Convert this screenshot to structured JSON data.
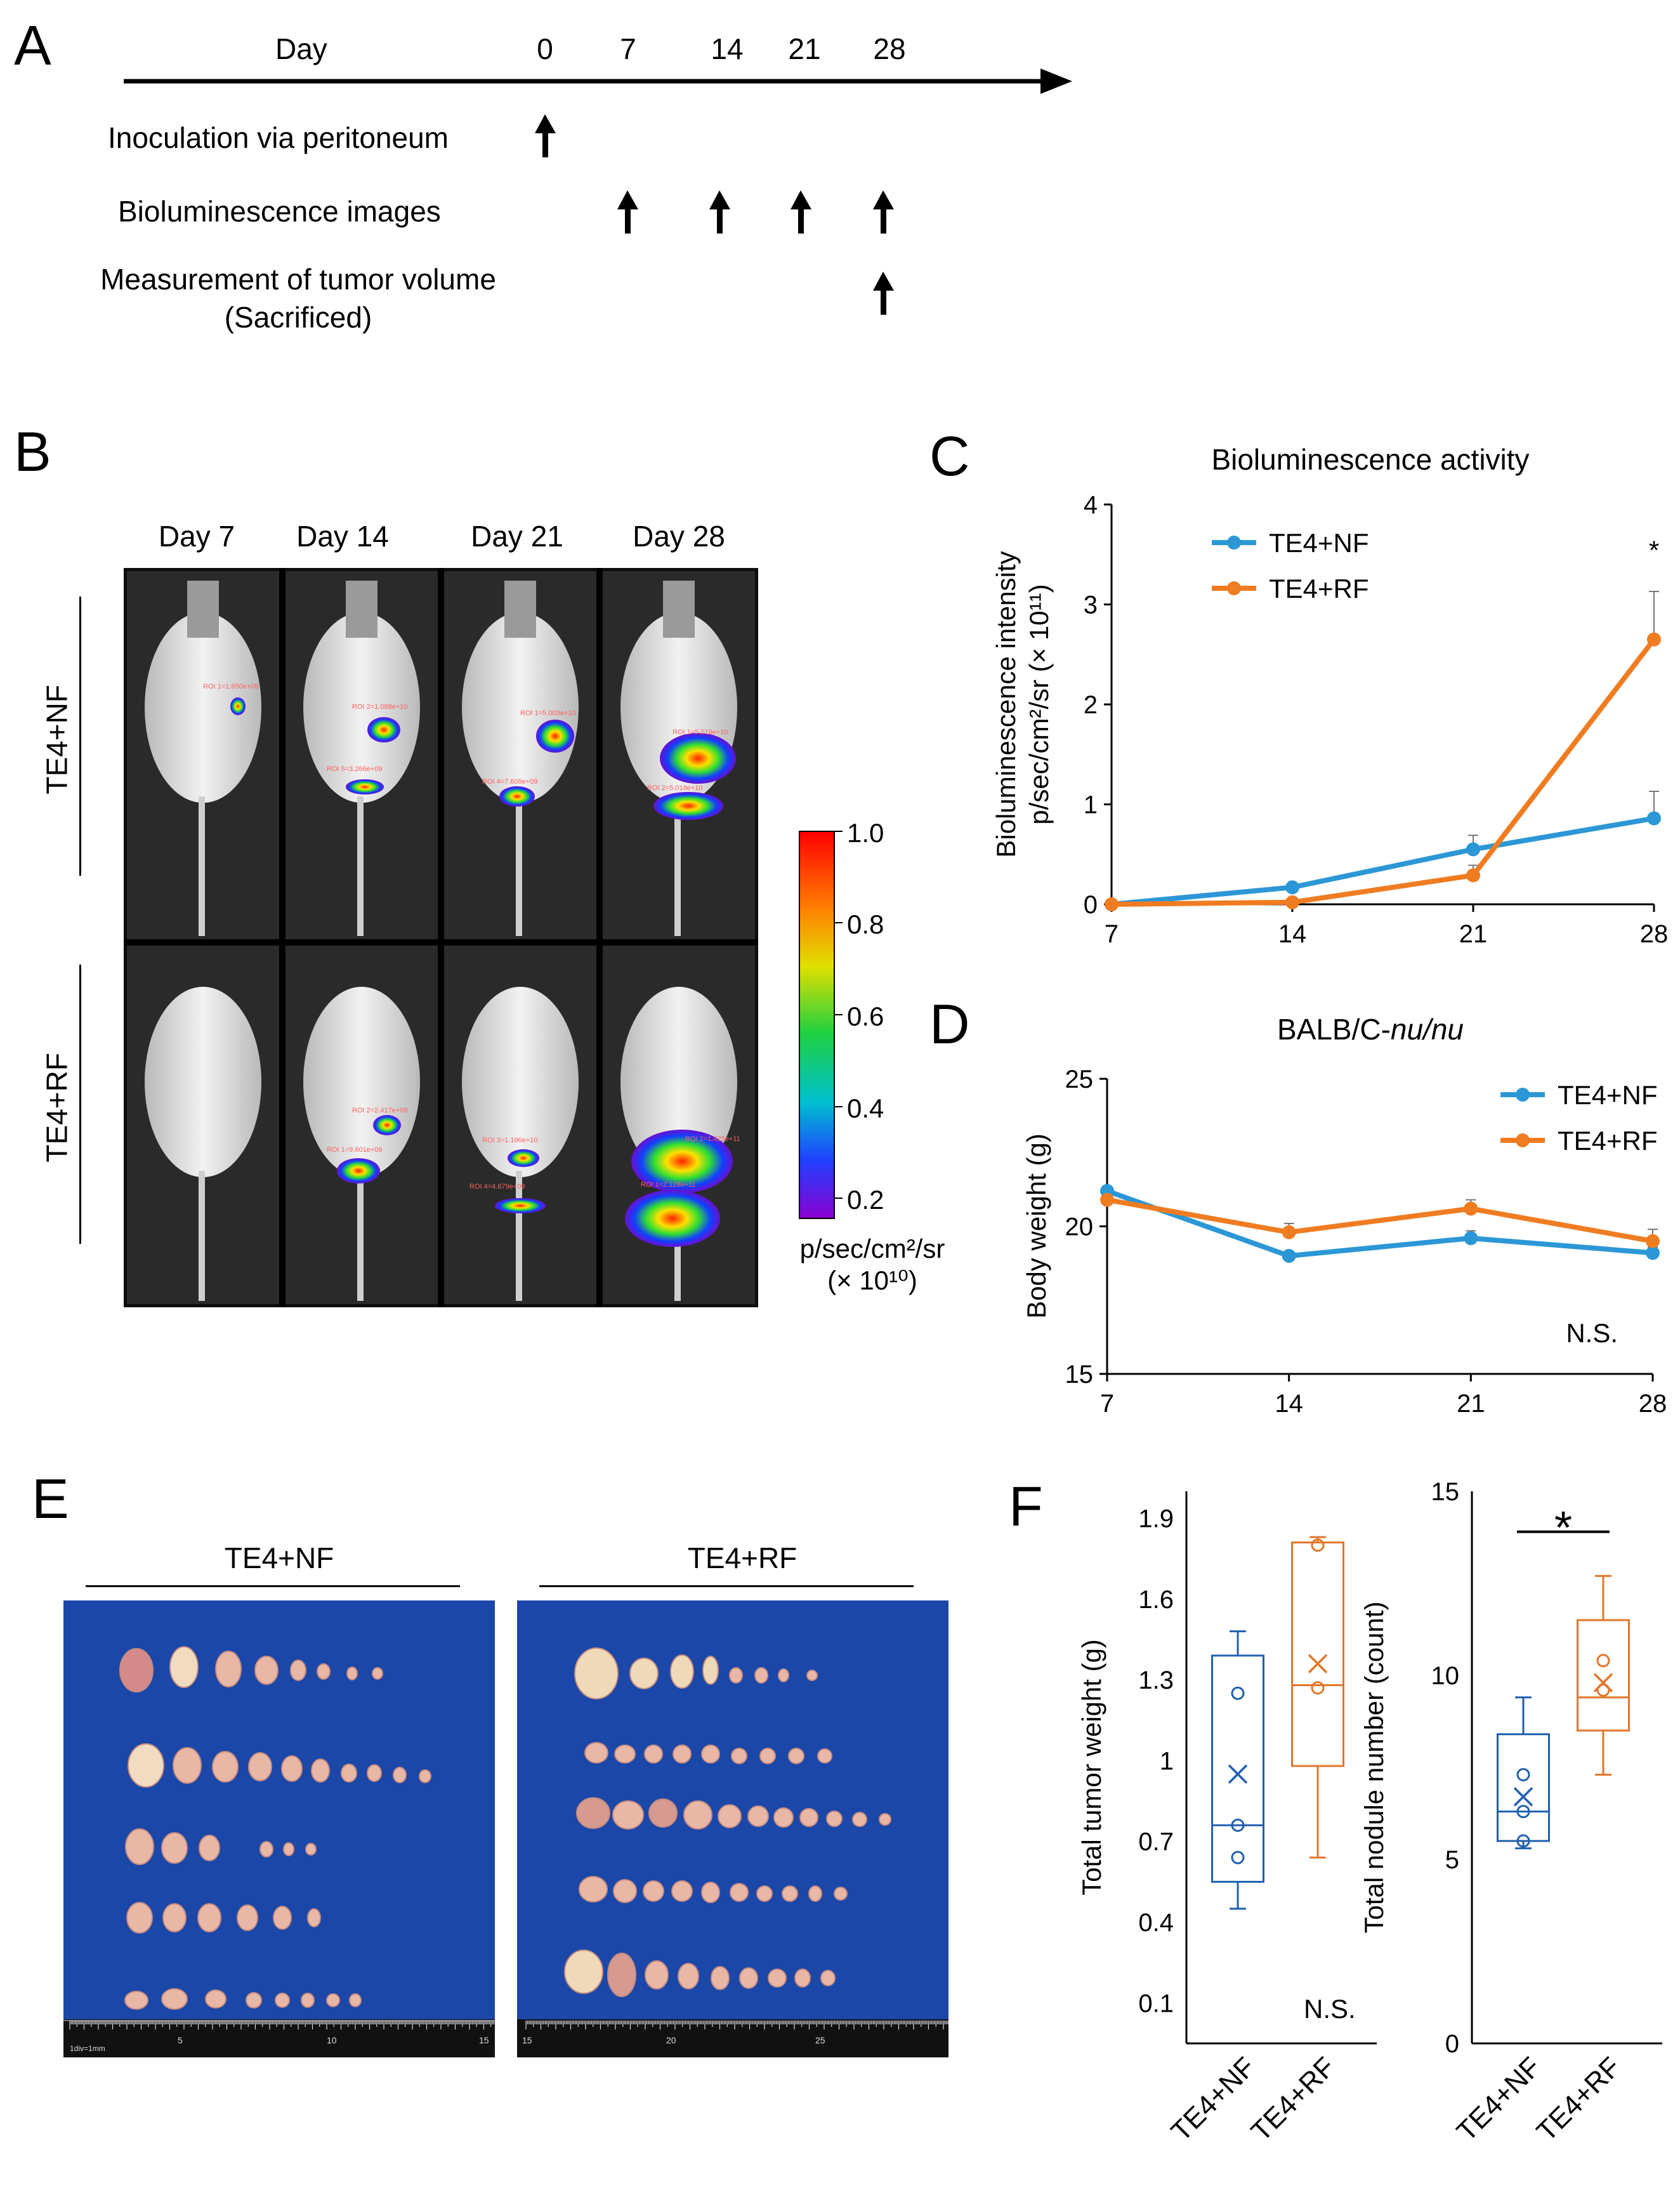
{
  "panels": {
    "a": "A",
    "b": "B",
    "c": "C",
    "d": "D",
    "e": "E",
    "f": "F"
  },
  "timeline": {
    "day_label": "Day",
    "days": [
      "0",
      "7",
      "14",
      "21",
      "28"
    ],
    "steps": [
      {
        "label": "Inoculation via peritoneum",
        "days": [
          "0"
        ]
      },
      {
        "label": "Bioluminescence images",
        "days": [
          "7",
          "14",
          "21",
          "28"
        ]
      },
      {
        "label": "Measurement of tumor volume",
        "label2": "(Sacrificed)",
        "days": [
          "28"
        ]
      }
    ]
  },
  "imaging": {
    "day_headers": [
      "Day 7",
      "Day 14",
      "Day 21",
      "Day 28"
    ],
    "groups": [
      "TE4+NF",
      "TE4+RF"
    ],
    "colorbar_ticks": [
      "1.0",
      "0.8",
      "0.6",
      "0.4",
      "0.2"
    ],
    "colorbar_unit_line1": "p/sec/cm²/sr",
    "colorbar_unit_line2": "(× 10¹⁰)",
    "roi_labels": [
      [
        "ROI 1=1.650e+09",
        "",
        "",
        ""
      ],
      [
        "",
        "ROI 2=1.088e+10",
        "ROI 1=5.003e+10",
        "ROI 1=5.519e+10"
      ],
      [
        "",
        "ROI 5=3.266e+09",
        "ROI 4=7.609e+09",
        "ROI 2=5.018e+10"
      ],
      [
        "",
        "ROI 2=2.417e+09",
        "ROI 3=1.196e+10",
        "ROI 2=1.425e+11"
      ],
      [
        "",
        "ROI 1=9.601e+09",
        "ROI 4=4.679e+09",
        "ROI 1=2.128e+11"
      ]
    ]
  },
  "photos": {
    "groups": [
      "TE4+NF",
      "TE4+RF"
    ],
    "ruler_left": [
      "1div=1mm",
      "5",
      "10",
      "15"
    ],
    "ruler_right": [
      "15",
      "20",
      "25"
    ]
  },
  "colors": {
    "nf": "#2c97d6",
    "rf": "#f07c22",
    "box_nf": "#1f5fb0",
    "box_rf": "#e2762a",
    "board": "#1b47a8"
  },
  "chart_data": [
    {
      "id": "C",
      "type": "line",
      "title": "Bioluminescence activity",
      "ylabel_line1": "Bioluminescence intensity",
      "ylabel_line2": "p/sec/cm²/sr (× 10¹¹)",
      "x": [
        7,
        14,
        21,
        28
      ],
      "xticks": [
        "7",
        "14",
        "21",
        "28"
      ],
      "ylim": [
        0,
        4
      ],
      "yticks": [
        "0",
        "1",
        "2",
        "3",
        "4"
      ],
      "series": [
        {
          "name": "TE4+NF",
          "values": [
            0,
            0.17,
            0.55,
            0.86
          ],
          "errors": [
            0,
            0,
            0.14,
            0.27
          ]
        },
        {
          "name": "TE4+RF",
          "values": [
            0,
            0.02,
            0.29,
            2.65
          ],
          "errors": [
            0,
            0,
            0.1,
            0.48
          ]
        }
      ],
      "annotation": "*",
      "legend": "top-left"
    },
    {
      "id": "D",
      "type": "line",
      "title": "BALB/C-nu/nu",
      "title_plain": "BALB/C-",
      "title_italic": "nu/nu",
      "ylabel": "Body weight (g)",
      "x": [
        7,
        14,
        21,
        28
      ],
      "xticks": [
        "7",
        "14",
        "21",
        "28"
      ],
      "ylim": [
        15,
        25
      ],
      "yticks": [
        "15",
        "20",
        "25"
      ],
      "series": [
        {
          "name": "TE4+NF",
          "values": [
            21.2,
            19.0,
            19.6,
            19.1
          ],
          "errors": [
            0,
            0,
            0.25,
            0.2
          ]
        },
        {
          "name": "TE4+RF",
          "values": [
            20.9,
            19.8,
            20.6,
            19.5
          ],
          "errors": [
            0,
            0.3,
            0.3,
            0.4
          ]
        }
      ],
      "annotation": "N.S.",
      "legend": "top-right"
    },
    {
      "id": "F-left",
      "type": "box",
      "ylabel": "Total tumor weight (g)",
      "categories": [
        "TE4+NF",
        "TE4+RF"
      ],
      "yticks": [
        "0.1",
        "0.4",
        "0.7",
        "1",
        "1.3",
        "1.6",
        "1.9"
      ],
      "ylim": [
        -0.05,
        2.0
      ],
      "boxes": [
        {
          "min": 0.45,
          "q1": 0.55,
          "median": 0.76,
          "q3": 1.39,
          "max": 1.48,
          "mean": 0.95,
          "points": [
            1.25,
            0.76,
            0.64
          ]
        },
        {
          "min": 0.64,
          "q1": 0.98,
          "median": 1.28,
          "q3": 1.81,
          "max": 1.83,
          "mean": 1.36,
          "points": [
            1.8,
            1.27
          ]
        }
      ],
      "annotation": "N.S."
    },
    {
      "id": "F-right",
      "type": "box",
      "ylabel": "Total nodule number (count)",
      "categories": [
        "TE4+NF",
        "TE4+RF"
      ],
      "yticks": [
        "0",
        "5",
        "10",
        "15"
      ],
      "ylim": [
        0,
        15
      ],
      "boxes": [
        {
          "min": 5.3,
          "q1": 5.5,
          "median": 6.3,
          "q3": 8.4,
          "max": 9.4,
          "mean": 6.7,
          "points": [
            7.3,
            6.3,
            5.5
          ]
        },
        {
          "min": 7.3,
          "q1": 8.5,
          "median": 9.4,
          "q3": 11.5,
          "max": 12.7,
          "mean": 9.8,
          "points": [
            10.4,
            9.6
          ]
        }
      ],
      "annotation": "*"
    }
  ]
}
